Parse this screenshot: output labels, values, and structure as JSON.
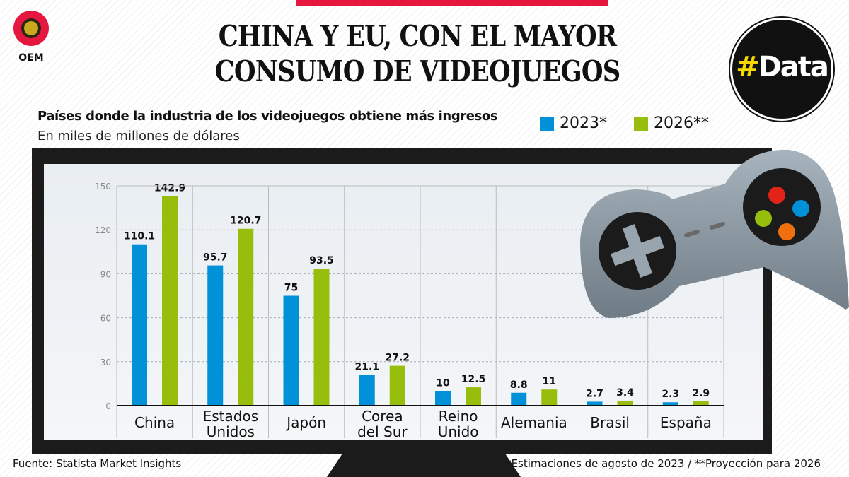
{
  "header": {
    "title_line1": "CHINA Y EU, CON EL MAYOR",
    "title_line2": "CONSUMO DE VIDEOJUEGOS",
    "logo_text": "OEM",
    "badge_hash": "#",
    "badge_word": "Data"
  },
  "colors": {
    "series_2023": "#0091d8",
    "series_2026": "#97be0d",
    "accent": "#e5173f"
  },
  "chart_data": {
    "type": "bar",
    "title": "Países donde la industria de los videojuegos obtiene más ingresos",
    "subtitle": "En miles de millones de dólares",
    "categories": [
      [
        "China"
      ],
      [
        "Estados",
        "Unidos"
      ],
      [
        "Japón"
      ],
      [
        "Corea",
        "del Sur"
      ],
      [
        "Reino",
        "Unido"
      ],
      [
        "Alemania"
      ],
      [
        "Brasil"
      ],
      [
        "España"
      ]
    ],
    "series": [
      {
        "name": "2023*",
        "values": [
          110.1,
          95.7,
          75,
          21.1,
          10,
          8.8,
          2.7,
          2.3
        ]
      },
      {
        "name": "2026**",
        "values": [
          142.9,
          120.7,
          93.5,
          27.2,
          12.5,
          11,
          3.4,
          2.9
        ]
      }
    ],
    "value_labels": [
      [
        "110.1",
        "95.7",
        "75",
        "21.1",
        "10",
        "8.8",
        "2.7",
        "2.3"
      ],
      [
        "142.9",
        "120.7",
        "93.5",
        "27.2",
        "12.5",
        "11",
        "3.4",
        "2.9"
      ]
    ],
    "yticks": [
      "0",
      "30",
      "60",
      "90",
      "120",
      "150"
    ],
    "ylim": [
      0,
      150
    ],
    "grid": true,
    "legend": "top-right"
  },
  "footer": {
    "source": "Fuente: Statista Market Insights",
    "notes": "*Estimaciones de agosto de 2023 / **Proyección para 2026"
  }
}
